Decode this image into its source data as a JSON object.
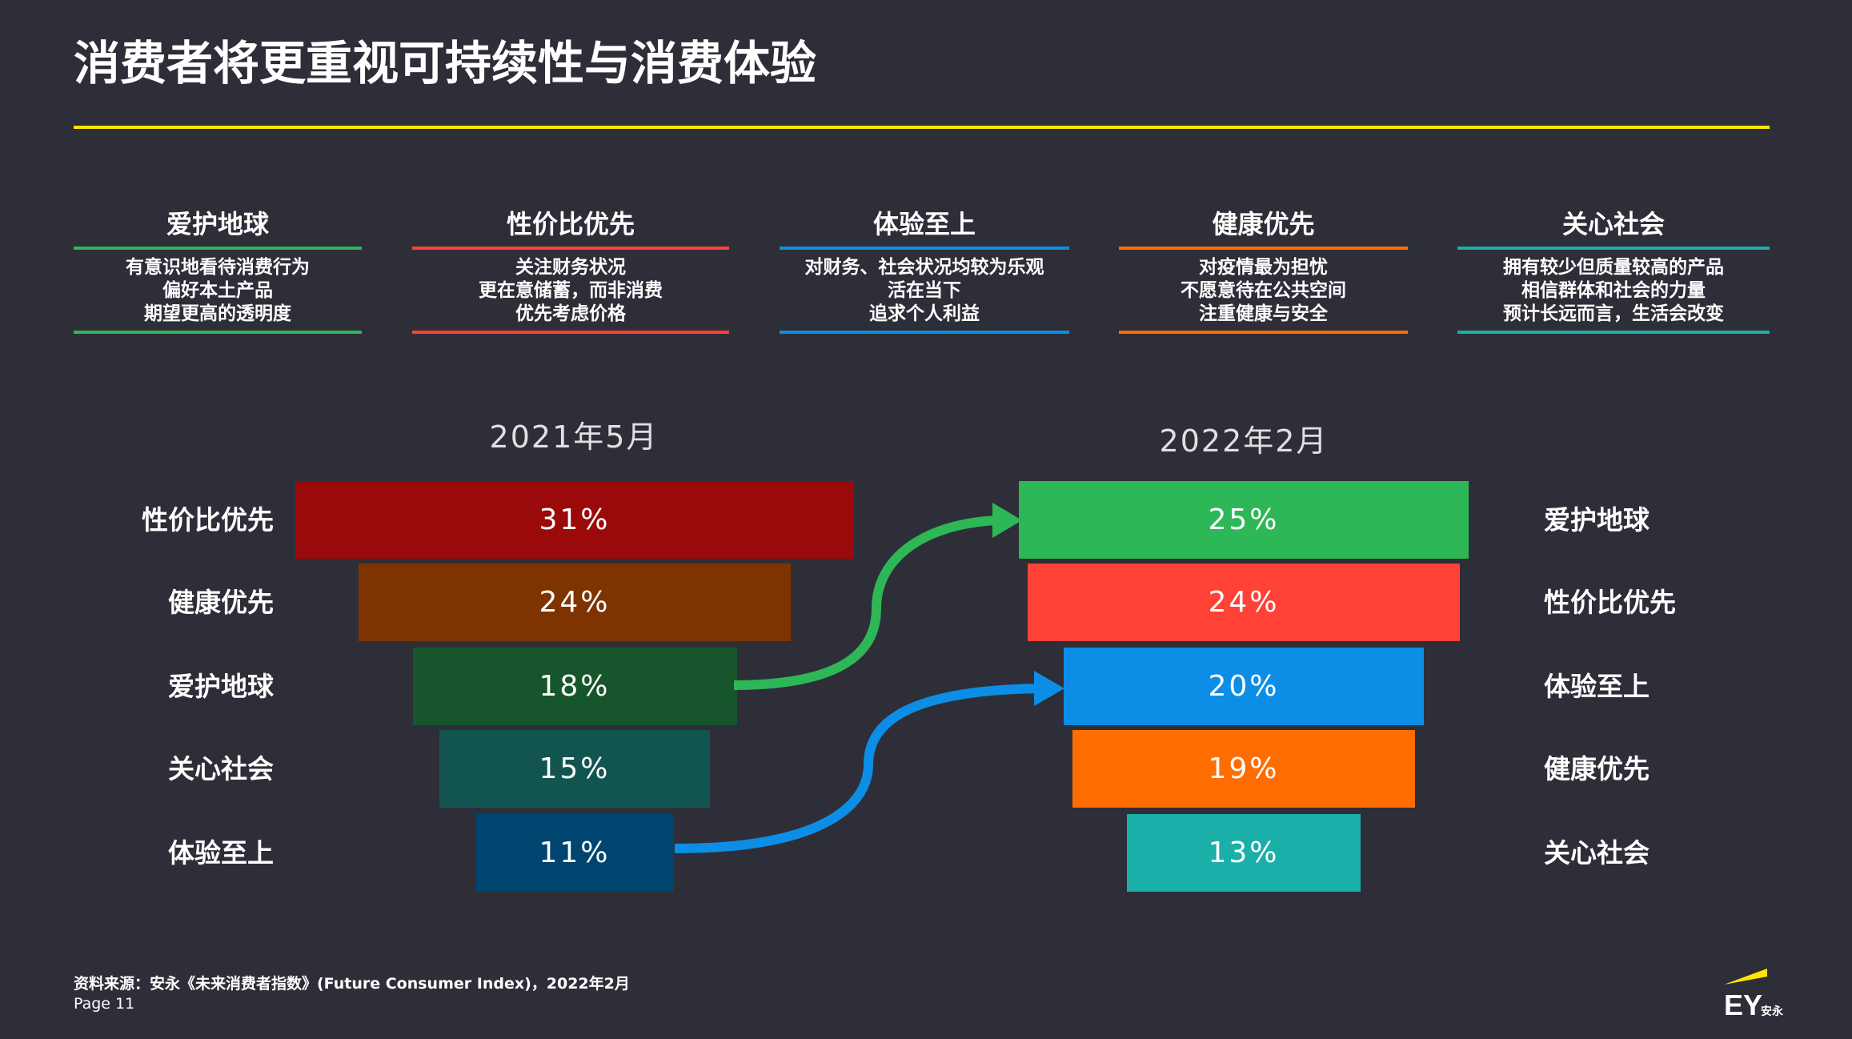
{
  "title": "消费者将更重视可持续性与消费体验",
  "segments": [
    {
      "name": "爱护地球",
      "color": "#2db757",
      "lines": [
        "有意识地看待消费行为",
        "偏好本土产品",
        "期望更高的透明度"
      ]
    },
    {
      "name": "性价比优先",
      "color": "#ff4136",
      "lines": [
        "关注财务状况",
        "更在意储蓄，而非消费",
        "优先考虑价格"
      ]
    },
    {
      "name": "体验至上",
      "color": "#0d8ee6",
      "lines": [
        "对财务、社会状况均较为乐观",
        "活在当下",
        "追求个人利益"
      ]
    },
    {
      "name": "健康优先",
      "color": "#ff6d00",
      "lines": [
        "对疫情最为担忧",
        "不愿意待在公共空间",
        "注重健康与安全"
      ]
    },
    {
      "name": "关心社会",
      "color": "#1aafa9",
      "lines": [
        "拥有较少但质量较高的产品",
        "相信群体和社会的力量",
        "预计长远而言，生活会改变"
      ]
    }
  ],
  "chart_data": {
    "type": "bar",
    "left": {
      "period": "2021年5月",
      "categories": [
        "性价比优先",
        "健康优先",
        "爱护地球",
        "关心社会",
        "体验至上"
      ],
      "values": [
        31,
        24,
        18,
        15,
        11
      ],
      "labels": [
        "31%",
        "24%",
        "18%",
        "15%",
        "11%"
      ],
      "colors": [
        "#9b0a0a",
        "#7e3400",
        "#17552c",
        "#125550",
        "#004470"
      ]
    },
    "right": {
      "period": "2022年2月",
      "categories": [
        "爱护地球",
        "性价比优先",
        "体验至上",
        "健康优先",
        "关心社会"
      ],
      "values": [
        25,
        24,
        20,
        19,
        13
      ],
      "labels": [
        "25%",
        "24%",
        "20%",
        "19%",
        "13%"
      ],
      "colors": [
        "#2db757",
        "#ff4136",
        "#0d8ee6",
        "#ff6d00",
        "#1aafa9"
      ]
    },
    "arrows": [
      {
        "from": "爱护地球",
        "color": "#2db757"
      },
      {
        "from": "体验至上",
        "color": "#0d8ee6"
      }
    ]
  },
  "footer": {
    "source": "资料来源：安永《未来消费者指数》(Future Consumer Index)，2022年2月",
    "page": "Page 11",
    "logo_text": "EY安永"
  }
}
